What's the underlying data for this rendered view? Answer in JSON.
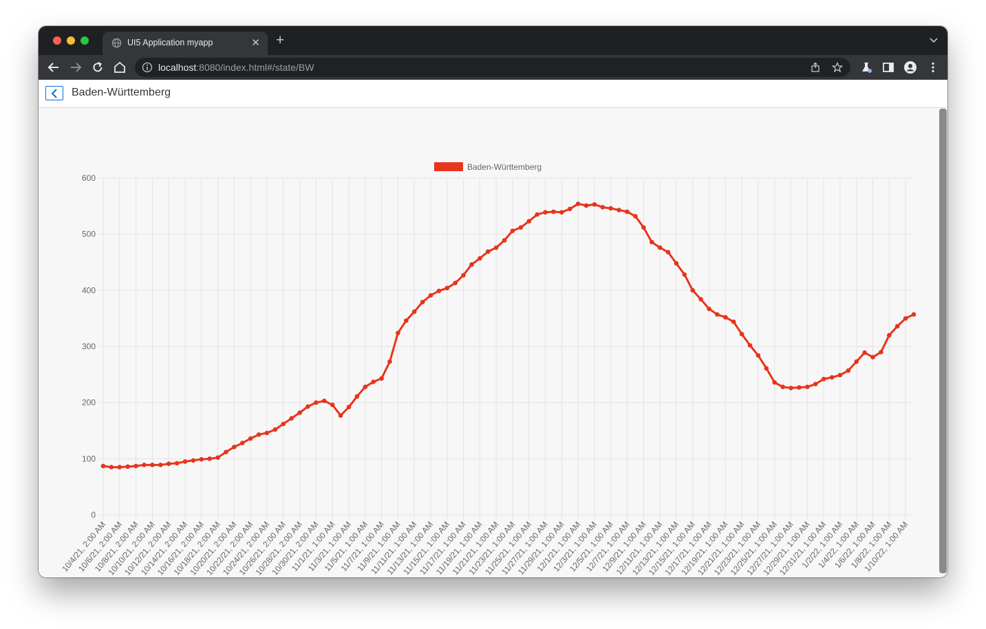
{
  "browser": {
    "tab_title": "UI5 Application myapp",
    "url_host": "localhost",
    "url_path": ":8080/index.html#/state/BW"
  },
  "page": {
    "title": "Baden-Württemberg"
  },
  "colors": {
    "series": "#e8341c",
    "grid": "#e3e3e3",
    "axis_text": "#666666"
  },
  "chart_data": {
    "type": "line",
    "legend_position": "top",
    "grid": true,
    "ylim": [
      0,
      600
    ],
    "yticks": [
      0,
      100,
      200,
      300,
      400,
      500,
      600
    ],
    "xlabels": [
      "10/4/21, 2:00 AM",
      "10/6/21, 2:00 AM",
      "10/8/21, 2:00 AM",
      "10/10/21, 2:00 AM",
      "10/12/21, 2:00 AM",
      "10/14/21, 2:00 AM",
      "10/16/21, 2:00 AM",
      "10/18/21, 2:00 AM",
      "10/20/21, 2:00 AM",
      "10/22/21, 2:00 AM",
      "10/24/21, 2:00 AM",
      "10/26/21, 2:00 AM",
      "10/28/21, 2:00 AM",
      "10/30/21, 2:00 AM",
      "11/1/21, 1:00 AM",
      "11/3/21, 1:00 AM",
      "11/5/21, 1:00 AM",
      "11/7/21, 1:00 AM",
      "11/9/21, 1:00 AM",
      "11/11/21, 1:00 AM",
      "11/13/21, 1:00 AM",
      "11/15/21, 1:00 AM",
      "11/17/21, 1:00 AM",
      "11/19/21, 1:00 AM",
      "11/21/21, 1:00 AM",
      "11/23/21, 1:00 AM",
      "11/25/21, 1:00 AM",
      "11/27/21, 1:00 AM",
      "11/29/21, 1:00 AM",
      "12/1/21, 1:00 AM",
      "12/3/21, 1:00 AM",
      "12/5/21, 1:00 AM",
      "12/7/21, 1:00 AM",
      "12/9/21, 1:00 AM",
      "12/11/21, 1:00 AM",
      "12/13/21, 1:00 AM",
      "12/15/21, 1:00 AM",
      "12/17/21, 1:00 AM",
      "12/19/21, 1:00 AM",
      "12/21/21, 1:00 AM",
      "12/23/21, 1:00 AM",
      "12/25/21, 1:00 AM",
      "12/27/21, 1:00 AM",
      "12/29/21, 1:00 AM",
      "12/31/21, 1:00 AM",
      "1/2/22, 1:00 AM",
      "1/4/22, 1:00 AM",
      "1/6/22, 1:00 AM",
      "1/8/22, 1:00 AM",
      "1/10/22, 1:00 AM"
    ],
    "series": [
      {
        "name": "Baden-Württemberg",
        "values": [
          87,
          85,
          85,
          86,
          87,
          89,
          89,
          89,
          91,
          92,
          95,
          97,
          99,
          100,
          102,
          112,
          121,
          128,
          136,
          143,
          146,
          152,
          162,
          172,
          182,
          193,
          200,
          203,
          196,
          177,
          192,
          211,
          228,
          237,
          243,
          273,
          324,
          346,
          362,
          379,
          391,
          399,
          404,
          413,
          427,
          446,
          457,
          469,
          476,
          489,
          506,
          512,
          523,
          535,
          539,
          540,
          539,
          545,
          554,
          551,
          553,
          548,
          546,
          543,
          540,
          532,
          512,
          486,
          476,
          468,
          448,
          428,
          400,
          384,
          367,
          357,
          352,
          344,
          322,
          302,
          284,
          261,
          236,
          228,
          226,
          227,
          228,
          233,
          242,
          245,
          249,
          257,
          273,
          289,
          281,
          290,
          320,
          336,
          350,
          357
        ]
      }
    ]
  }
}
